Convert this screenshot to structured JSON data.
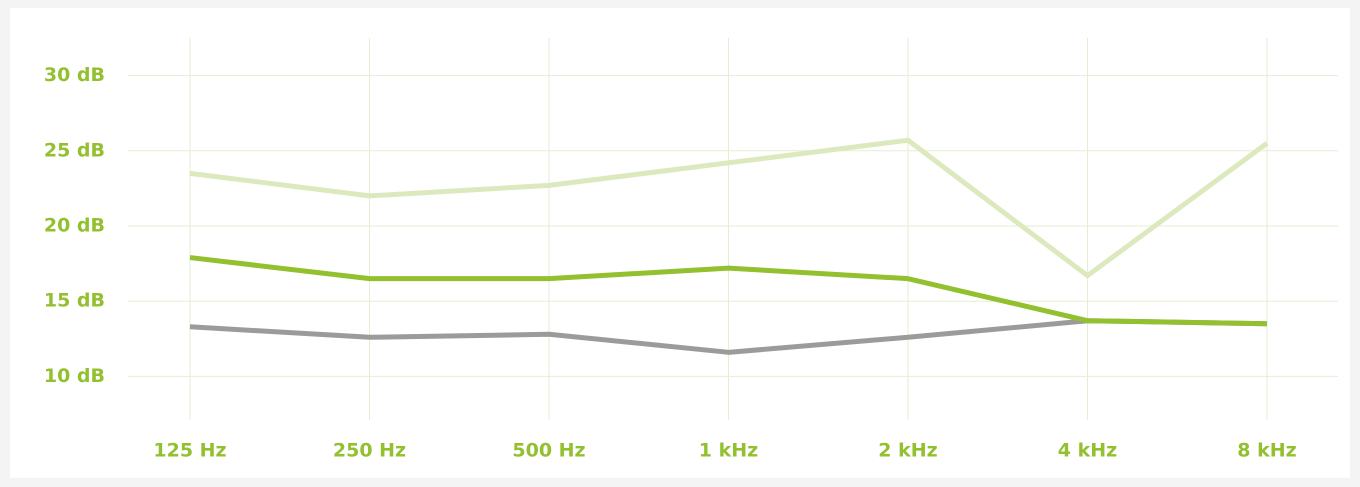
{
  "chart_data": {
    "type": "line",
    "categories": [
      "125 Hz",
      "250 Hz",
      "500 Hz",
      "1 kHz",
      "2 kHz",
      "4 kHz",
      "8 kHz"
    ],
    "series": [
      {
        "color": "#dce9bf",
        "values": [
          23.5,
          22.0,
          22.7,
          24.2,
          25.7,
          16.7,
          25.5
        ]
      },
      {
        "color": "#9b9b9b",
        "values": [
          13.3,
          12.6,
          12.8,
          11.6,
          12.6,
          13.7,
          13.5
        ]
      },
      {
        "color": "#92c02f",
        "values": [
          17.9,
          16.5,
          16.5,
          17.2,
          16.5,
          13.7,
          13.5
        ]
      }
    ],
    "ylim": [
      7.1,
      32.5
    ],
    "yticks": [
      {
        "value": 10,
        "label": "10 dB"
      },
      {
        "value": 15,
        "label": "15 dB"
      },
      {
        "value": 20,
        "label": "20 dB"
      },
      {
        "value": 25,
        "label": "25 dB"
      },
      {
        "value": 30,
        "label": "30 dB"
      }
    ],
    "grid": true
  }
}
